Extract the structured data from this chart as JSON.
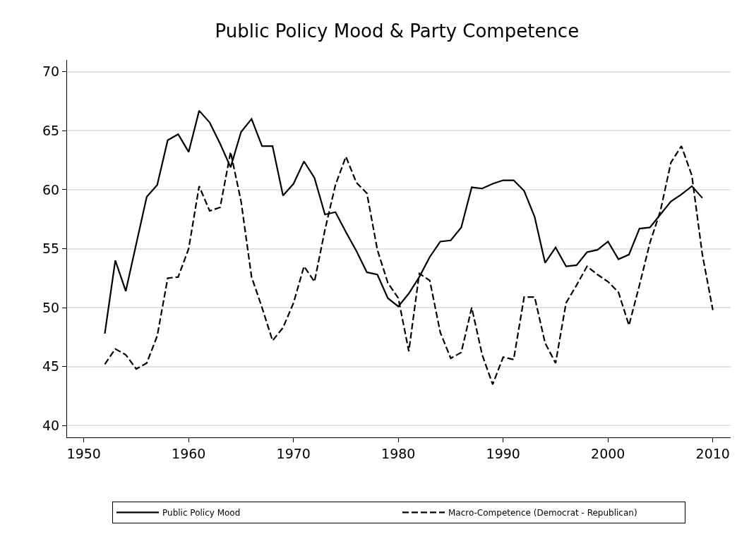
{
  "chart_data": {
    "type": "line",
    "title": "Public Policy Mood & Party Competence",
    "xlim": [
      1948.4,
      2011.7
    ],
    "xticks": [
      1950,
      1960,
      1970,
      1980,
      1990,
      2000,
      2010
    ],
    "ylim": [
      39.0,
      71.0
    ],
    "yticks": [
      40,
      45,
      50,
      55,
      60,
      65,
      70
    ],
    "grid": "y",
    "legend": "bottom",
    "marker": "none",
    "series": [
      {
        "name": "Public Policy Mood",
        "color": "#000000",
        "line_style": "solid",
        "x": [
          1952,
          1953,
          1954,
          1955,
          1956,
          1957,
          1958,
          1959,
          1960,
          1961,
          1962,
          1963,
          1964,
          1965,
          1966,
          1967,
          1968,
          1969,
          1970,
          1971,
          1972,
          1973,
          1974,
          1975,
          1976,
          1977,
          1978,
          1979,
          1980,
          1981,
          1982,
          1983,
          1984,
          1985,
          1986,
          1987,
          1988,
          1989,
          1990,
          1991,
          1992,
          1993,
          1994,
          1995,
          1996,
          1997,
          1998,
          1999,
          2000,
          2001,
          2002,
          2003,
          2004,
          2005,
          2006,
          2007,
          2008,
          2009
        ],
        "values": [
          47.8,
          54.0,
          51.4,
          55.4,
          59.4,
          60.4,
          64.2,
          64.7,
          63.2,
          66.7,
          65.7,
          63.9,
          61.9,
          64.9,
          66.0,
          63.7,
          63.7,
          59.5,
          60.5,
          62.4,
          61.0,
          57.9,
          58.1,
          56.4,
          54.8,
          53.0,
          52.8,
          50.8,
          50.1,
          51.2,
          52.6,
          54.3,
          55.6,
          55.7,
          56.8,
          60.2,
          60.1,
          60.5,
          60.8,
          60.8,
          59.9,
          57.7,
          53.8,
          55.1,
          53.5,
          53.6,
          54.7,
          54.9,
          55.6,
          54.1,
          54.5,
          56.7,
          56.8,
          57.9,
          59.0,
          59.6,
          60.3,
          59.3
        ]
      },
      {
        "name": "Macro-Competence (Democrat - Republican)",
        "color": "#000000",
        "line_style": "dashed",
        "x": [
          1952,
          1953,
          1954,
          1955,
          1956,
          1957,
          1958,
          1959,
          1960,
          1961,
          1962,
          1963,
          1964,
          1965,
          1966,
          1967,
          1968,
          1969,
          1970,
          1971,
          1972,
          1973,
          1974,
          1975,
          1976,
          1977,
          1978,
          1979,
          1980,
          1981,
          1982,
          1983,
          1984,
          1985,
          1986,
          1987,
          1988,
          1989,
          1990,
          1991,
          1992,
          1993,
          1994,
          1995,
          1996,
          1997,
          1998,
          1999,
          2000,
          2001,
          2002,
          2003,
          2004,
          2005,
          2006,
          2007,
          2008,
          2009,
          2010
        ],
        "values": [
          45.2,
          46.5,
          46.0,
          44.8,
          45.3,
          47.6,
          52.5,
          52.6,
          55.0,
          60.3,
          58.2,
          58.5,
          63.2,
          59.0,
          52.6,
          50.0,
          47.2,
          48.3,
          50.4,
          53.5,
          52.2,
          56.6,
          60.4,
          62.8,
          60.6,
          59.7,
          54.9,
          52.1,
          50.8,
          46.3,
          52.9,
          52.3,
          47.9,
          45.7,
          46.2,
          50.0,
          46.0,
          43.5,
          45.8,
          45.6,
          50.9,
          50.9,
          47.0,
          45.3,
          50.4,
          51.9,
          53.5,
          52.8,
          52.2,
          51.3,
          48.5,
          51.9,
          55.5,
          58.2,
          62.3,
          63.7,
          61.2,
          54.5,
          49.8
        ]
      }
    ]
  }
}
